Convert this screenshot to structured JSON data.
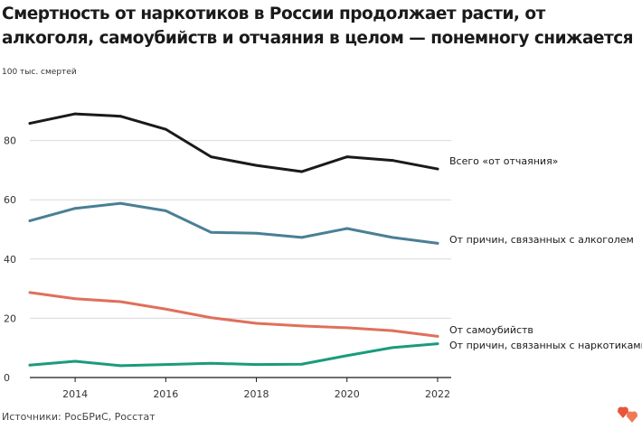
{
  "chart_data": {
    "type": "line",
    "title": "Смертность от наркотиков в России продолжает расти, от алкоголя, самоубийств и отчаяния в целом — понемногу снижается",
    "y_unit_label": "100 тыс. смертей",
    "x": [
      2013,
      2014,
      2015,
      2016,
      2017,
      2018,
      2019,
      2020,
      2021,
      2022
    ],
    "x_ticks": [
      2014,
      2016,
      2018,
      2020,
      2022
    ],
    "y_ticks": [
      0,
      20,
      40,
      60,
      80
    ],
    "xlim": [
      2013,
      2022.3
    ],
    "ylim": [
      0,
      100
    ],
    "grid": "horizontal",
    "series": [
      {
        "name": "Всего «от отчаяния»",
        "color": "#1a1a1a",
        "values": [
          85.8,
          89.0,
          88.2,
          83.8,
          74.5,
          71.6,
          69.5,
          74.5,
          73.3,
          70.4
        ]
      },
      {
        "name": "От причин, связанных с алкоголем",
        "color": "#4a7f95",
        "values": [
          52.9,
          57.1,
          58.8,
          56.3,
          49.0,
          48.7,
          47.3,
          50.3,
          47.3,
          45.3
        ]
      },
      {
        "name": "От самоубийств",
        "color": "#e0705a",
        "values": [
          28.7,
          26.6,
          25.6,
          23.1,
          20.2,
          18.3,
          17.4,
          16.8,
          15.8,
          13.9
        ]
      },
      {
        "name": "От причин, связанных с наркотиками",
        "color": "#1a9b7c",
        "values": [
          4.2,
          5.5,
          4.0,
          4.4,
          4.8,
          4.4,
          4.5,
          7.4,
          10.1,
          11.4
        ]
      }
    ]
  },
  "source": "Источники: РосБРиС, Росстат",
  "logo_icon": "hearts-logo-icon",
  "logo_colors": [
    "#e8553e",
    "#f07a55"
  ]
}
